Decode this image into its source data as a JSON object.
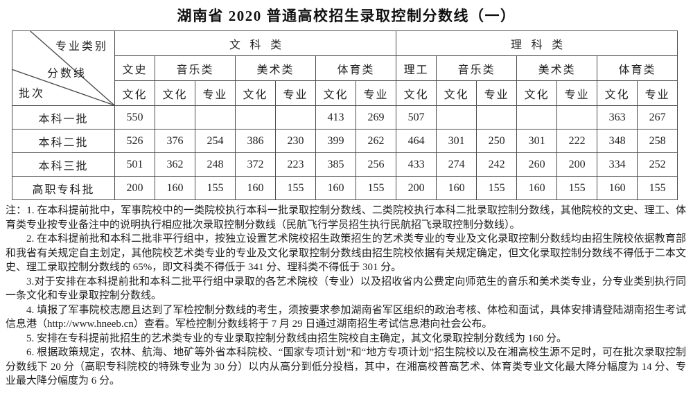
{
  "title": "湖南省 2020 普通高校招生录取控制分数线（一）",
  "table": {
    "corner": {
      "top": "专业类别",
      "middle": "分数线",
      "bottom": "批次"
    },
    "groups": [
      {
        "label": "文科类",
        "span": 7
      },
      {
        "label": "理科类",
        "span": 7
      }
    ],
    "subgroups": [
      {
        "label": "文史",
        "span": 1
      },
      {
        "label": "音乐类",
        "span": 2
      },
      {
        "label": "美术类",
        "span": 2
      },
      {
        "label": "体育类",
        "span": 2
      },
      {
        "label": "理工",
        "span": 1
      },
      {
        "label": "音乐类",
        "span": 2
      },
      {
        "label": "美术类",
        "span": 2
      },
      {
        "label": "体育类",
        "span": 2
      }
    ],
    "columns": [
      "文化",
      "文化",
      "专业",
      "文化",
      "专业",
      "文化",
      "专业",
      "文化",
      "文化",
      "专业",
      "文化",
      "专业",
      "文化",
      "专业"
    ],
    "rows": [
      {
        "label": "本科一批",
        "values": [
          "550",
          "",
          "",
          "",
          "",
          "413",
          "269",
          "507",
          "",
          "",
          "",
          "",
          "363",
          "267"
        ]
      },
      {
        "label": "本科二批",
        "values": [
          "526",
          "376",
          "254",
          "386",
          "230",
          "399",
          "262",
          "464",
          "301",
          "250",
          "301",
          "222",
          "348",
          "258"
        ]
      },
      {
        "label": "本科三批",
        "values": [
          "501",
          "362",
          "248",
          "372",
          "223",
          "385",
          "256",
          "433",
          "274",
          "242",
          "260",
          "200",
          "334",
          "252"
        ]
      },
      {
        "label": "高职专科批",
        "values": [
          "200",
          "160",
          "155",
          "160",
          "155",
          "160",
          "155",
          "200",
          "160",
          "155",
          "160",
          "155",
          "160",
          "155"
        ]
      }
    ]
  },
  "notes": [
    "注：1.  在本科提前批中，军事院校中的一类院校执行本科一批录取控制分数线、二类院校执行本科二批录取控制分数线，其他院校的文史、理工、体育类专业按专业备注中的说明执行相应批次录取控制分数线（民航飞行学员招生执行民航招飞录取控制分数线）。",
    "2.  在本科提前批和本科二批非平行组中，按独立设置艺术院校招生政策招生的艺术类专业的专业及文化录取控制分数线均由招生院校依据教育部和我省有关规定自主划定，其他院校艺术类专业的专业及文化录取控制分数线由招生院校依据有关规定确定，但文化录取控制分数线不得低于二本文史、理工录取控制分数线的 65%，即文科类不得低于  341 分、理科类不得低于 301 分。",
    "3.对于安排在本科提前批和本科二批平行组中录取的各艺术院校（专业）以及招收省内公费定向师范生的音乐和美术类专业，分专业类别执行同一条文化和专业录取控制分数线。",
    "4.  填报了军事院校志愿且达到了军检控制分数线的考生，须按要求参加湖南省军区组织的政治考核、体检和面试，具体安排请登陆湖南招生考试信息港（http://www.hneeb.cn）查看。军检控制分数线将于 7 月 29 日通过湖南招生考试信息港向社会公布。",
    "5.  安排在专科提前批招生的艺术类专业的专业录取控制分数线由招生院校自主确定，其文化录取控制分数线为 160 分。",
    "6.  根据政策规定，农林、航海、地矿等外省本科院校、“国家专项计划”和“地方专项计划”招生院校以及在湘高校生源不足时，可在批次录取控制分数线下 20 分（高职专科院校的特殊专业为 30 分）以内从高分到低分投档，其中，在湘高校普高艺术、体育类专业文化最大降分幅度为 14 分、专业最大降分幅度为 6 分。"
  ]
}
